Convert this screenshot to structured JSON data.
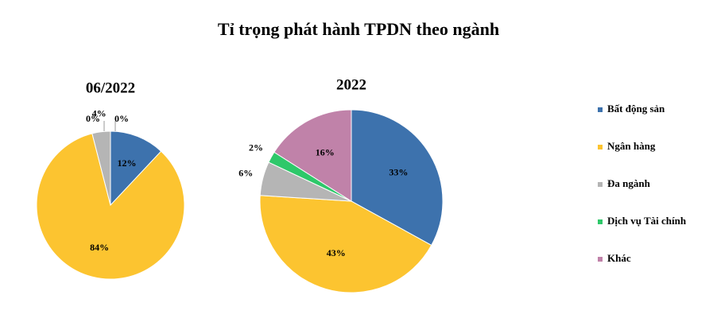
{
  "title": "Tỉ trọng phát hành TPDN theo ngành",
  "chart_data": [
    {
      "type": "pie",
      "title": "06/2022",
      "categories": [
        "Bất động sản",
        "Ngân hàng",
        "Đa ngành",
        "Dịch vụ Tài chính",
        "Khác"
      ],
      "values": [
        12,
        84,
        4,
        0,
        0
      ],
      "value_labels": [
        "12%",
        "84%",
        "4%",
        "0%",
        "0%"
      ],
      "colors": [
        "#3d72ad",
        "#fcc430",
        "#b5b5b5",
        "#2ec86a",
        "#c082a9"
      ]
    },
    {
      "type": "pie",
      "title": "2022",
      "categories": [
        "Bất động sản",
        "Ngân hàng",
        "Đa ngành",
        "Dịch vụ Tài chính",
        "Khác"
      ],
      "values": [
        33,
        43,
        6,
        2,
        16
      ],
      "value_labels": [
        "33%",
        "43%",
        "6%",
        "2%",
        "16%"
      ],
      "colors": [
        "#3d72ad",
        "#fcc430",
        "#b5b5b5",
        "#2ec86a",
        "#c082a9"
      ]
    }
  ]
}
